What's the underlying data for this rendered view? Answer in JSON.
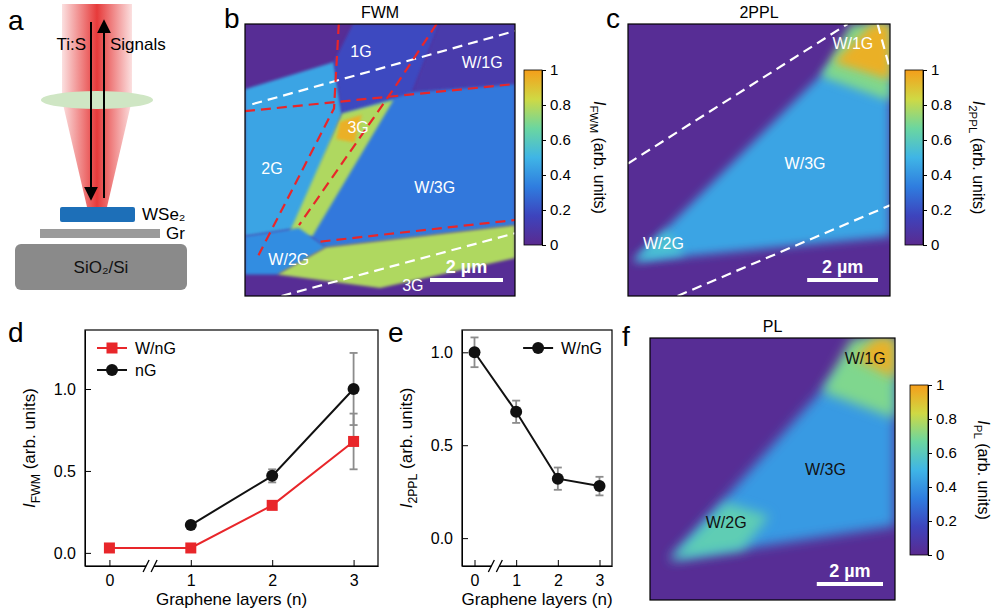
{
  "chart_data": [
    {
      "type": "schematic",
      "panel": "a",
      "labels": {
        "laser": "Ti:S",
        "signal": "Signals",
        "flake": "WSe₂",
        "graphene": "Gr",
        "substrate": "SiO₂/Si"
      }
    },
    {
      "type": "map",
      "panel": "b",
      "title": "FWM",
      "xlim": [
        0,
        7.4
      ],
      "ylim": [
        0,
        7.8
      ],
      "tick_labels": false,
      "regions": [
        {
          "value": 0.02,
          "points": [
            [
              0,
              0
            ],
            [
              7.4,
              0
            ],
            [
              7.4,
              7.8
            ],
            [
              0,
              7.8
            ]
          ]
        },
        {
          "value": 0.45,
          "points": [
            [
              0,
              1.87
            ],
            [
              2.44,
              1.09
            ],
            [
              2.66,
              2.57
            ],
            [
              1.48,
              5.85
            ],
            [
              0,
              6.08
            ]
          ]
        },
        {
          "value": 0.18,
          "points": [
            [
              2.44,
              1.09
            ],
            [
              2.96,
              0
            ],
            [
              5.33,
              0
            ],
            [
              4.59,
              1.95
            ],
            [
              2.66,
              2.57
            ]
          ]
        },
        {
          "value": 0.1,
          "points": [
            [
              5.33,
              0
            ],
            [
              7.4,
              0
            ],
            [
              7.4,
              1.72
            ],
            [
              4.59,
              1.95
            ]
          ]
        },
        {
          "value": 0.32,
          "points": [
            [
              2.66,
              2.57
            ],
            [
              4.59,
              1.95
            ],
            [
              7.4,
              1.72
            ],
            [
              7.4,
              5.77
            ],
            [
              2.22,
              6.4
            ],
            [
              1.48,
              5.85
            ]
          ]
        },
        {
          "value": 0.78,
          "points": [
            [
              2.66,
              2.57
            ],
            [
              4.07,
              2.18
            ],
            [
              1.85,
              6.08
            ],
            [
              1.11,
              6.24
            ]
          ]
        },
        {
          "value": 0.95,
          "points": [
            [
              2.6,
              2.8
            ],
            [
              3.2,
              2.6
            ],
            [
              3.0,
              3.4
            ],
            [
              2.5,
              3.3
            ]
          ]
        },
        {
          "value": 0.38,
          "points": [
            [
              0,
              6.08
            ],
            [
              1.48,
              5.85
            ],
            [
              2.22,
              6.4
            ],
            [
              0.89,
              7.18
            ],
            [
              0,
              7.18
            ]
          ]
        },
        {
          "value": 0.78,
          "points": [
            [
              2.22,
              6.4
            ],
            [
              7.4,
              5.77
            ],
            [
              7.4,
              6.71
            ],
            [
              3.7,
              7.57
            ],
            [
              0.89,
              7.18
            ]
          ]
        }
      ],
      "boundaries": [
        {
          "color": "#ffffff",
          "line_style": "dashed",
          "points": [
            [
              0.2,
              2.3
            ],
            [
              7.4,
              0.2
            ]
          ]
        },
        {
          "color": "#ffffff",
          "line_style": "dashed",
          "points": [
            [
              1.0,
              7.8
            ],
            [
              7.4,
              6.0
            ]
          ]
        },
        {
          "color": "#e8262a",
          "line_style": "dashed",
          "points": [
            [
              2.57,
              0
            ],
            [
              2.44,
              2.42
            ],
            [
              0.37,
              6.63
            ]
          ]
        },
        {
          "color": "#e8262a",
          "line_style": "dashed",
          "points": [
            [
              5.25,
              0
            ],
            [
              4.07,
              1.87
            ],
            [
              1.48,
              5.77
            ]
          ]
        },
        {
          "color": "#e8262a",
          "line_style": "dashed",
          "points": [
            [
              0,
              2.5
            ],
            [
              7.4,
              1.72
            ]
          ]
        },
        {
          "color": "#e8262a",
          "line_style": "dashed",
          "points": [
            [
              2.07,
              6.24
            ],
            [
              7.4,
              5.62
            ]
          ]
        }
      ],
      "annotations": [
        {
          "text": "1G",
          "x": 3.18,
          "y": 0.78,
          "color": "#ffffff"
        },
        {
          "text": "W/1G",
          "x": 6.5,
          "y": 1.1,
          "color": "#ffffff"
        },
        {
          "text": "3G",
          "x": 3.1,
          "y": 2.96,
          "color": "#ffffff"
        },
        {
          "text": "2G",
          "x": 0.74,
          "y": 4.13,
          "color": "#ffffff"
        },
        {
          "text": "W/3G",
          "x": 5.2,
          "y": 4.7,
          "color": "#ffffff"
        },
        {
          "text": "W/2G",
          "x": 1.2,
          "y": 6.75,
          "color": "#ffffff"
        },
        {
          "text": "3G",
          "x": 4.6,
          "y": 7.5,
          "color": "#ffffff"
        }
      ],
      "scale_bar": {
        "length": 2,
        "label": "2 µm"
      },
      "colorbar": {
        "label": [
          "I",
          "FWM",
          " (arb. units)"
        ],
        "range": [
          0,
          1
        ],
        "ticks": [
          0,
          0.2,
          0.4,
          0.6,
          0.8,
          1
        ],
        "colors": [
          "#5a2a8f",
          "#3d44bd",
          "#2f7ddf",
          "#3fb5e6",
          "#6bd6a0",
          "#cfd944",
          "#f59e1a"
        ]
      }
    },
    {
      "type": "map",
      "panel": "c",
      "title": "2PPL",
      "xlim": [
        0,
        7.4
      ],
      "ylim": [
        0,
        7.8
      ],
      "tick_labels": false,
      "regions": [
        {
          "value": 0.02,
          "points": [
            [
              0,
              0
            ],
            [
              7.4,
              0
            ],
            [
              7.4,
              7.8
            ],
            [
              0,
              7.8
            ]
          ]
        },
        {
          "value": 0.45,
          "points": [
            [
              6.9,
              0
            ],
            [
              7.4,
              0
            ],
            [
              7.4,
              6.1
            ],
            [
              0.15,
              6.8
            ]
          ]
        },
        {
          "value": 0.7,
          "points": [
            [
              6.3,
              0
            ],
            [
              7.4,
              0
            ],
            [
              7.4,
              2.2
            ],
            [
              5.45,
              1.5
            ]
          ]
        },
        {
          "value": 0.95,
          "points": [
            [
              6.9,
              0
            ],
            [
              7.4,
              0
            ],
            [
              7.4,
              1.6
            ],
            [
              5.8,
              1.1
            ]
          ]
        },
        {
          "value": 0.55,
          "points": [
            [
              0.15,
              6.8
            ],
            [
              1.1,
              5.9
            ],
            [
              1.6,
              6.6
            ]
          ]
        }
      ],
      "boundaries": [
        {
          "color": "#ffffff",
          "line_style": "dashed",
          "points": [
            [
              0,
              4.0
            ],
            [
              6.2,
              0
            ]
          ]
        },
        {
          "color": "#ffffff",
          "line_style": "dashed",
          "points": [
            [
              1.4,
              7.8
            ],
            [
              7.4,
              5.2
            ]
          ]
        },
        {
          "color": "#ffffff",
          "line_style": "dashed",
          "points": [
            [
              7.05,
              0
            ],
            [
              7.4,
              1.3
            ]
          ]
        }
      ],
      "annotations": [
        {
          "text": "W/1G",
          "x": 6.35,
          "y": 0.55,
          "color": "#ffffff"
        },
        {
          "text": "W/3G",
          "x": 5.0,
          "y": 4.0,
          "color": "#ffffff"
        },
        {
          "text": "W/2G",
          "x": 1.0,
          "y": 6.3,
          "color": "#ffffff"
        }
      ],
      "scale_bar": {
        "length": 2,
        "label": "2 µm"
      },
      "colorbar": {
        "label": [
          "I",
          "2PPL",
          " (arb. units)"
        ],
        "range": [
          0,
          1
        ],
        "ticks": [
          0,
          0.2,
          0.4,
          0.6,
          0.8,
          1
        ],
        "colors": [
          "#5a2a8f",
          "#3d44bd",
          "#2f7ddf",
          "#3fb5e6",
          "#6bd6a0",
          "#cfd944",
          "#f59e1a"
        ]
      }
    },
    {
      "type": "line",
      "panel": "d",
      "x": [
        0,
        1,
        2,
        3
      ],
      "xlim": [
        -0.3,
        3.3
      ],
      "xticks": [
        0,
        1,
        2,
        3
      ],
      "ylim": [
        -0.08,
        1.36
      ],
      "yticks": [
        {
          "value": 0,
          "label": "0.0"
        },
        {
          "value": 0.5,
          "label": "0.5"
        },
        {
          "value": 1,
          "label": "1.0"
        }
      ],
      "xlabel": "Graphene layers (n)",
      "ylabel": [
        "I",
        "FWM",
        " (arb. units)"
      ],
      "legend": "upper left",
      "series": [
        {
          "name": "W/nG",
          "color": "#e8262a",
          "marker": "square",
          "values": [
            0.03,
            0.03,
            0.29,
            0.68
          ],
          "errors": [
            0.02,
            0.02,
            0.02,
            0.17
          ]
        },
        {
          "name": "nG",
          "color": "#111111",
          "marker": "circle",
          "values": [
            null,
            0.17,
            0.47,
            1.0
          ],
          "errors": [
            null,
            0.02,
            0.04,
            0.22
          ]
        }
      ]
    },
    {
      "type": "line",
      "panel": "e",
      "x": [
        0,
        1,
        2,
        3
      ],
      "xlim": [
        -0.3,
        3.3
      ],
      "xticks": [
        0,
        1,
        2,
        3
      ],
      "ylim": [
        -0.15,
        1.12
      ],
      "yticks": [
        {
          "value": 0,
          "label": "0.0"
        },
        {
          "value": 0.5,
          "label": "0.5"
        },
        {
          "value": 1,
          "label": "1.0"
        }
      ],
      "xlabel": "Graphene layers (n)",
      "ylabel": [
        "I",
        "2PPL",
        " (arb. units)"
      ],
      "legend": "upper right",
      "series": [
        {
          "name": "W/nG",
          "color": "#111111",
          "marker": "circle",
          "values": [
            1.0,
            0.68,
            0.32,
            0.28
          ],
          "errors": [
            0.08,
            0.06,
            0.06,
            0.05
          ]
        }
      ]
    },
    {
      "type": "map",
      "panel": "f",
      "title": "PL",
      "xlim": [
        0,
        7.4
      ],
      "ylim": [
        0,
        7.8
      ],
      "tick_labels": false,
      "regions": [
        {
          "value": 0.02,
          "points": [
            [
              0,
              0
            ],
            [
              7.4,
              0
            ],
            [
              7.4,
              7.8
            ],
            [
              0,
              7.8
            ]
          ]
        },
        {
          "value": 0.42,
          "points": [
            [
              6.6,
              0
            ],
            [
              7.4,
              0
            ],
            [
              7.4,
              5.6
            ],
            [
              0.6,
              6.6
            ]
          ]
        },
        {
          "value": 0.7,
          "points": [
            [
              6.1,
              0
            ],
            [
              7.4,
              0
            ],
            [
              7.4,
              2.4
            ],
            [
              5.2,
              1.6
            ]
          ]
        },
        {
          "value": 0.95,
          "points": [
            [
              6.8,
              0
            ],
            [
              7.4,
              0
            ],
            [
              7.4,
              1.2
            ],
            [
              6.2,
              0.6
            ]
          ]
        },
        {
          "value": 0.62,
          "points": [
            [
              0.6,
              6.6
            ],
            [
              2.3,
              4.9
            ],
            [
              3.6,
              5.3
            ],
            [
              2.8,
              6.3
            ]
          ]
        }
      ],
      "annotations": [
        {
          "text": "W/1G",
          "x": 6.5,
          "y": 0.6,
          "color": "#111111"
        },
        {
          "text": "W/3G",
          "x": 5.3,
          "y": 3.9,
          "color": "#111111"
        },
        {
          "text": "W/2G",
          "x": 2.3,
          "y": 5.5,
          "color": "#111111"
        }
      ],
      "scale_bar": {
        "length": 2,
        "label": "2 µm"
      },
      "colorbar": {
        "label": [
          "I",
          "PL",
          " (arb. units)"
        ],
        "range": [
          0,
          1
        ],
        "ticks": [
          0,
          0.2,
          0.4,
          0.6,
          0.8,
          1
        ],
        "colors": [
          "#5a2a8f",
          "#3d44bd",
          "#2f7ddf",
          "#3fb5e6",
          "#6bd6a0",
          "#cfd944",
          "#f59e1a"
        ]
      }
    }
  ]
}
